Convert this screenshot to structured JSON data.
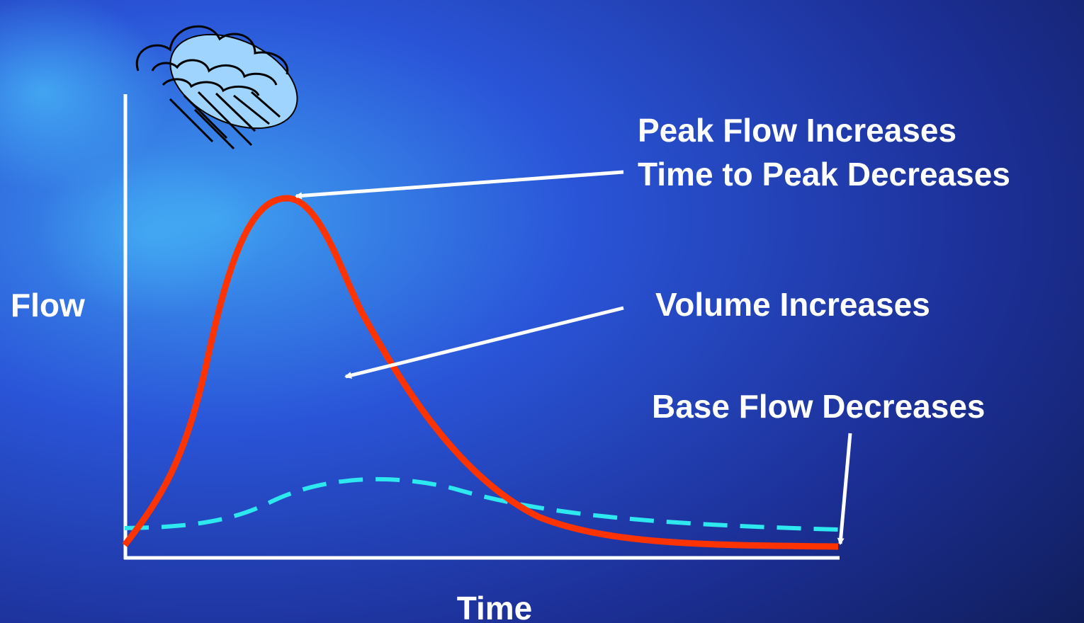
{
  "axes": {
    "y_label": "Flow",
    "x_label": "Time"
  },
  "annotations": [
    {
      "lines": [
        "Peak Flow Increases",
        "Time to Peak Decreases"
      ]
    },
    {
      "lines": [
        "Volume Increases"
      ]
    },
    {
      "lines": [
        "Base Flow Decreases"
      ]
    }
  ]
}
